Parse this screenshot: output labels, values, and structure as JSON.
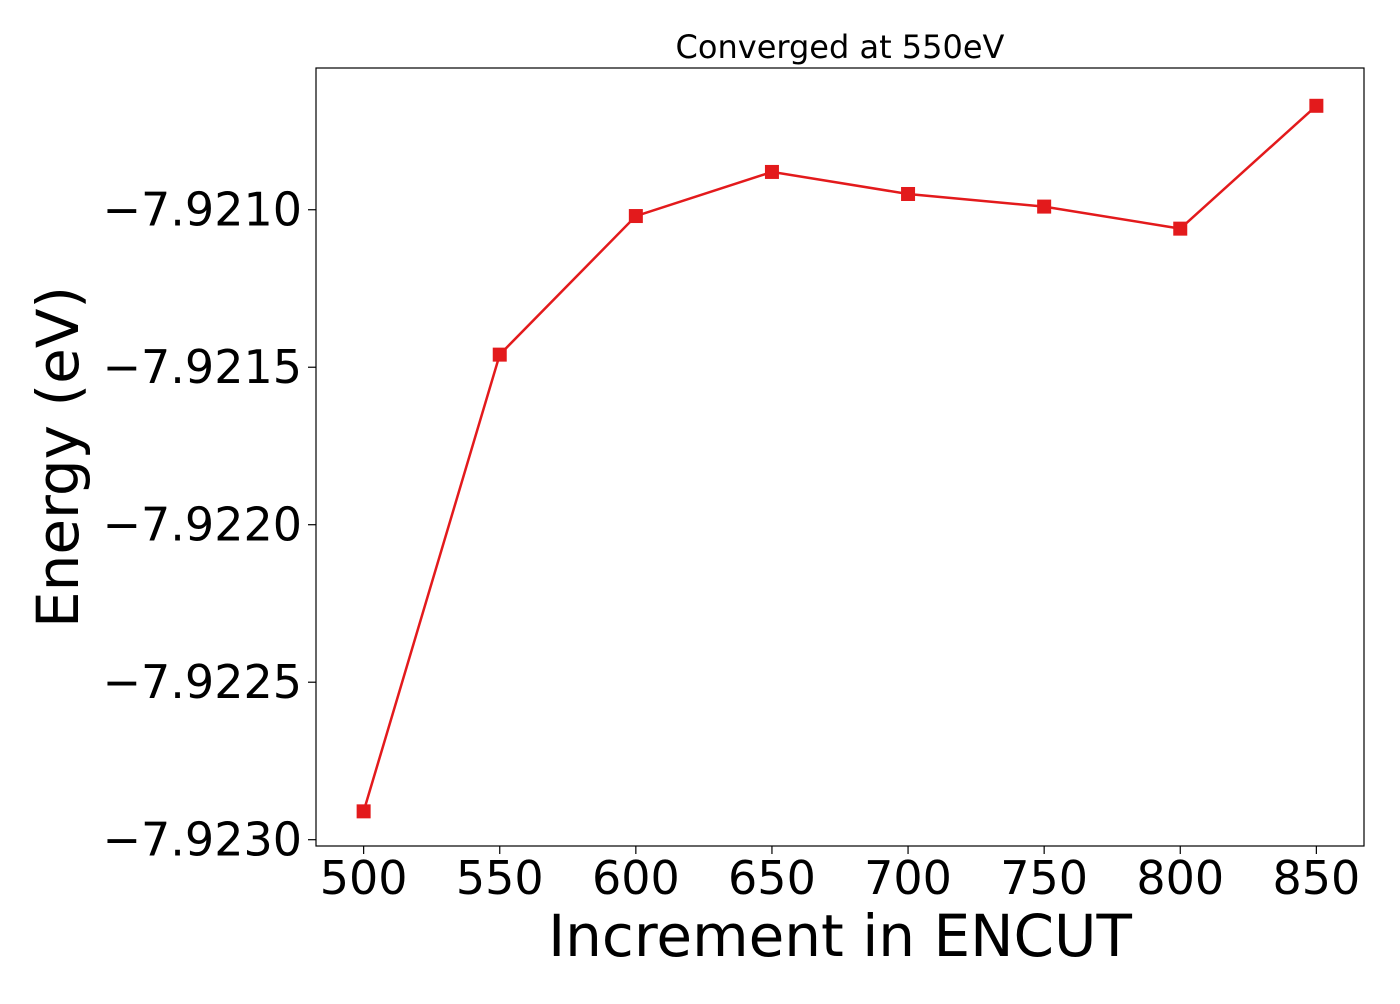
{
  "chart_data": {
    "type": "line",
    "title": "Converged at 550eV",
    "xlabel": "Increment in ENCUT",
    "ylabel": "Energy (eV)",
    "x": [
      500,
      550,
      600,
      650,
      700,
      750,
      800,
      850
    ],
    "series": [
      {
        "values": [
          -7.92291,
          -7.92146,
          -7.92102,
          -7.92088,
          -7.92095,
          -7.92099,
          -7.92106,
          -7.92067
        ],
        "color": "#e31a1c",
        "marker": "square"
      }
    ],
    "xticks": [
      500,
      550,
      600,
      650,
      700,
      750,
      800,
      850
    ],
    "xtick_labels": [
      "500",
      "550",
      "600",
      "650",
      "700",
      "750",
      "800",
      "850"
    ],
    "yticks": [
      -7.923,
      -7.9225,
      -7.922,
      -7.9215,
      -7.921
    ],
    "ytick_labels": [
      "−7.9230",
      "−7.9225",
      "−7.9220",
      "−7.9215",
      "−7.9210"
    ],
    "xlim": [
      482.5,
      867.5
    ],
    "ylim": [
      -7.92302,
      -7.92055
    ],
    "grid": false,
    "legend": "none"
  }
}
